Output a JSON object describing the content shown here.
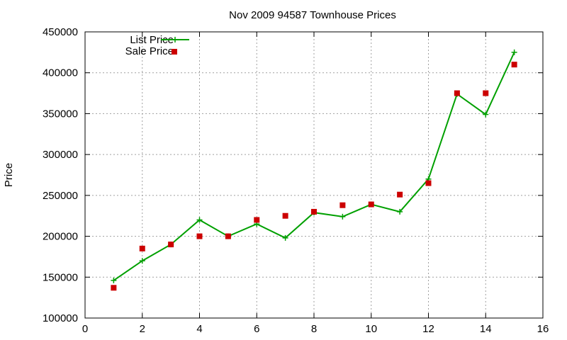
{
  "chart_data": {
    "type": "line",
    "title": "Nov 2009 94587 Townhouse Prices",
    "xlabel": "",
    "ylabel": "Price",
    "xlim": [
      0,
      16
    ],
    "ylim": [
      100000,
      450000
    ],
    "x_ticks": [
      0,
      2,
      4,
      6,
      8,
      10,
      12,
      14,
      16
    ],
    "y_ticks": [
      100000,
      150000,
      200000,
      250000,
      300000,
      350000,
      400000,
      450000
    ],
    "grid": true,
    "legend_position": "top-left",
    "series": [
      {
        "name": "List Price",
        "style": "line-with-plus-markers",
        "color": "#00a000",
        "x": [
          1,
          2,
          3,
          4,
          5,
          6,
          7,
          8,
          9,
          10,
          11,
          12,
          13,
          14,
          15
        ],
        "values": [
          146000,
          170000,
          190000,
          220000,
          200000,
          215000,
          198000,
          229000,
          224000,
          239000,
          230000,
          270000,
          374000,
          349000,
          425000
        ]
      },
      {
        "name": "Sale Price",
        "style": "square-points",
        "color": "#cc0000",
        "x": [
          1,
          2,
          3,
          4,
          5,
          6,
          7,
          8,
          9,
          10,
          11,
          12,
          13,
          14,
          15
        ],
        "values": [
          137000,
          185000,
          190000,
          200000,
          200000,
          220000,
          225000,
          230000,
          238000,
          239000,
          251000,
          265000,
          375000,
          375000,
          410000
        ]
      }
    ]
  }
}
